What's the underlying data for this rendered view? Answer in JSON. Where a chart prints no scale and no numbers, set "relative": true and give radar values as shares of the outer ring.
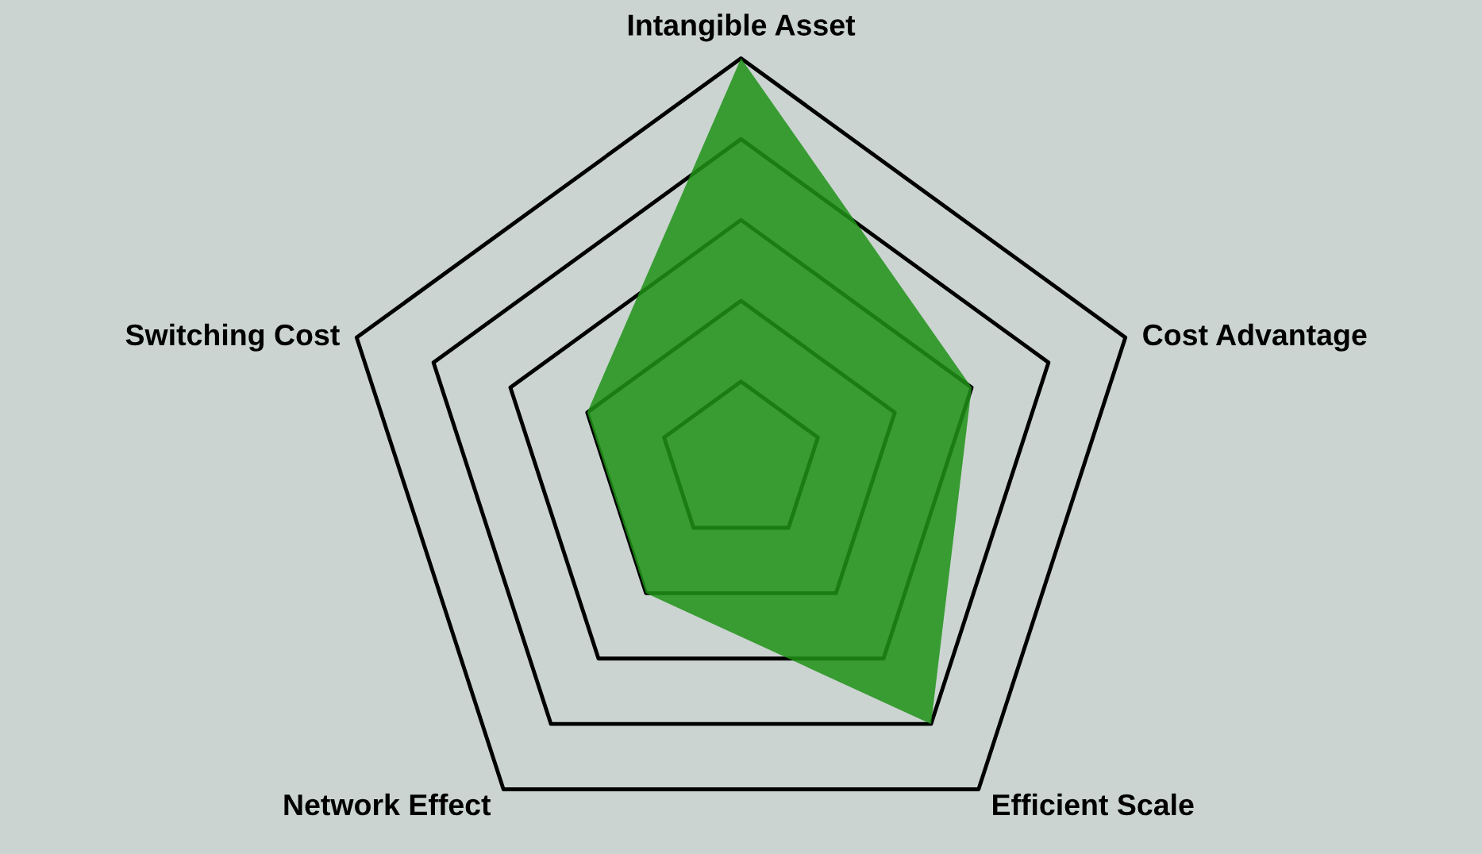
{
  "chart_data": {
    "type": "radar",
    "relative": true,
    "grid": true,
    "categories": [
      "Intangible Asset",
      "Cost Advantage",
      "Efficient Scale",
      "Network Effect",
      "Switching Cost"
    ],
    "series": [
      {
        "color": "#1f9216",
        "values": [
          1.0,
          0.6,
          0.8,
          0.4,
          0.4
        ]
      }
    ]
  }
}
